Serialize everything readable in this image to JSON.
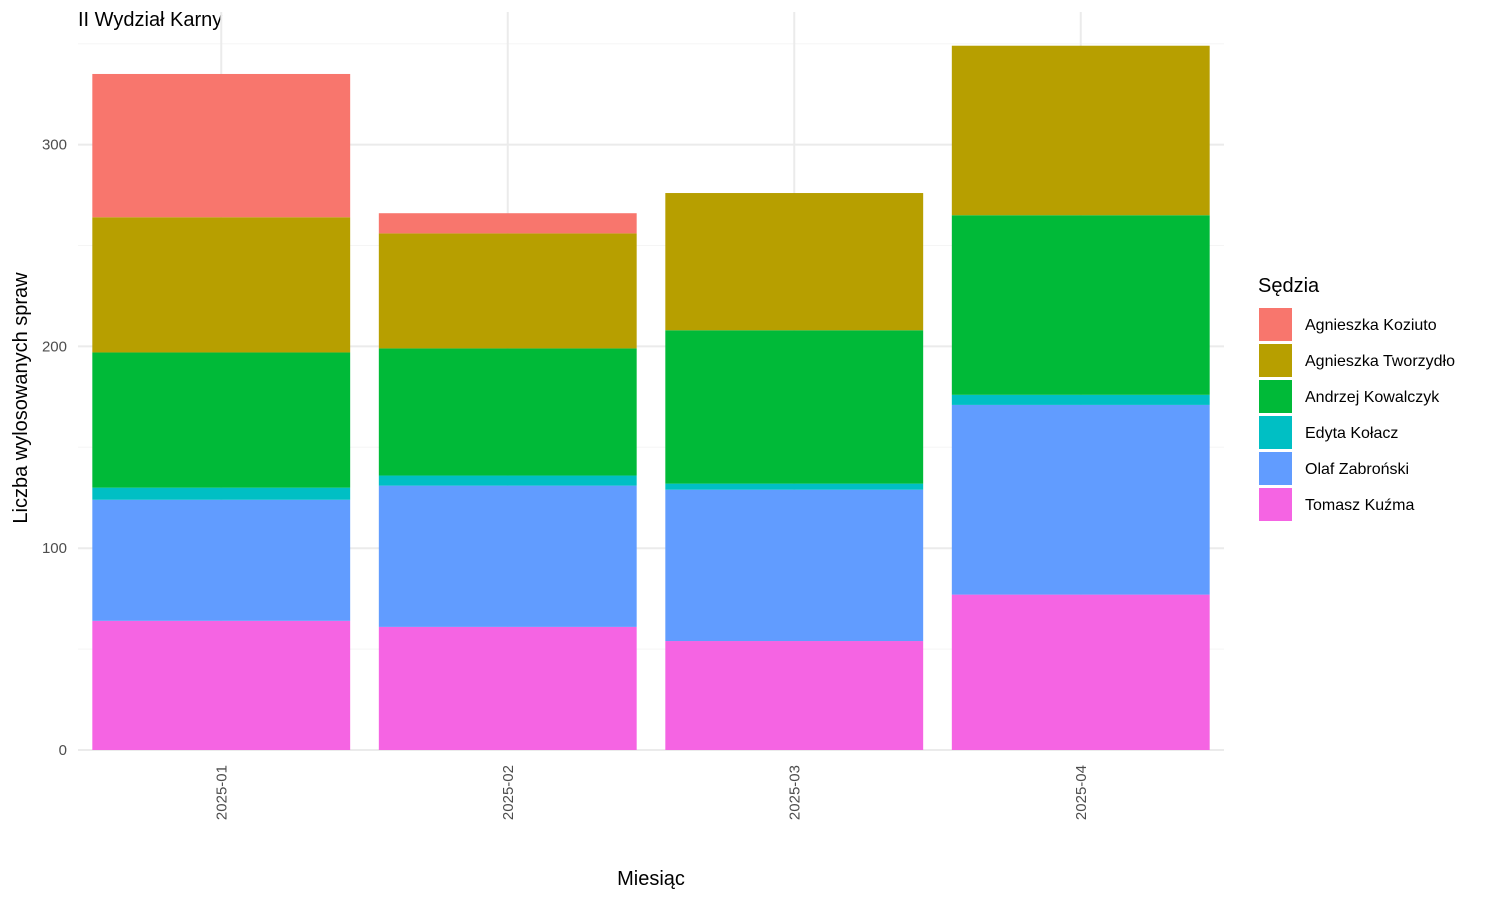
{
  "chart_data": {
    "type": "bar",
    "stacked": true,
    "title": "II Wydział Karny",
    "xlabel": "Miesiąc",
    "ylabel": "Liczba wylosowanych spraw",
    "ylim": [
      0,
      350
    ],
    "yticks": [
      0,
      100,
      200,
      300
    ],
    "grid": true,
    "categories": [
      "2025-01",
      "2025-02",
      "2025-03",
      "2025-04"
    ],
    "legend": {
      "title": "Sędzia",
      "position": "right"
    },
    "series": [
      {
        "name": "Tomasz Kuźma",
        "color": "#F564E3",
        "values": [
          64,
          61,
          54,
          77
        ]
      },
      {
        "name": "Olaf Zabroński",
        "color": "#619CFF",
        "values": [
          60,
          70,
          75,
          94
        ]
      },
      {
        "name": "Edyta Kołacz",
        "color": "#00BFC4",
        "values": [
          6,
          5,
          3,
          5
        ]
      },
      {
        "name": "Andrzej Kowalczyk",
        "color": "#00BA38",
        "values": [
          67,
          63,
          76,
          89
        ]
      },
      {
        "name": "Agnieszka Tworzydło",
        "color": "#B79F00",
        "values": [
          67,
          57,
          68,
          84
        ]
      },
      {
        "name": "Agnieszka Koziuto",
        "color": "#F8766D",
        "values": [
          71,
          10,
          0,
          0
        ]
      }
    ],
    "legend_order": [
      "Agnieszka Koziuto",
      "Agnieszka Tworzydło",
      "Andrzej Kowalczyk",
      "Edyta Kołacz",
      "Olaf Zabroński",
      "Tomasz Kuźma"
    ]
  }
}
